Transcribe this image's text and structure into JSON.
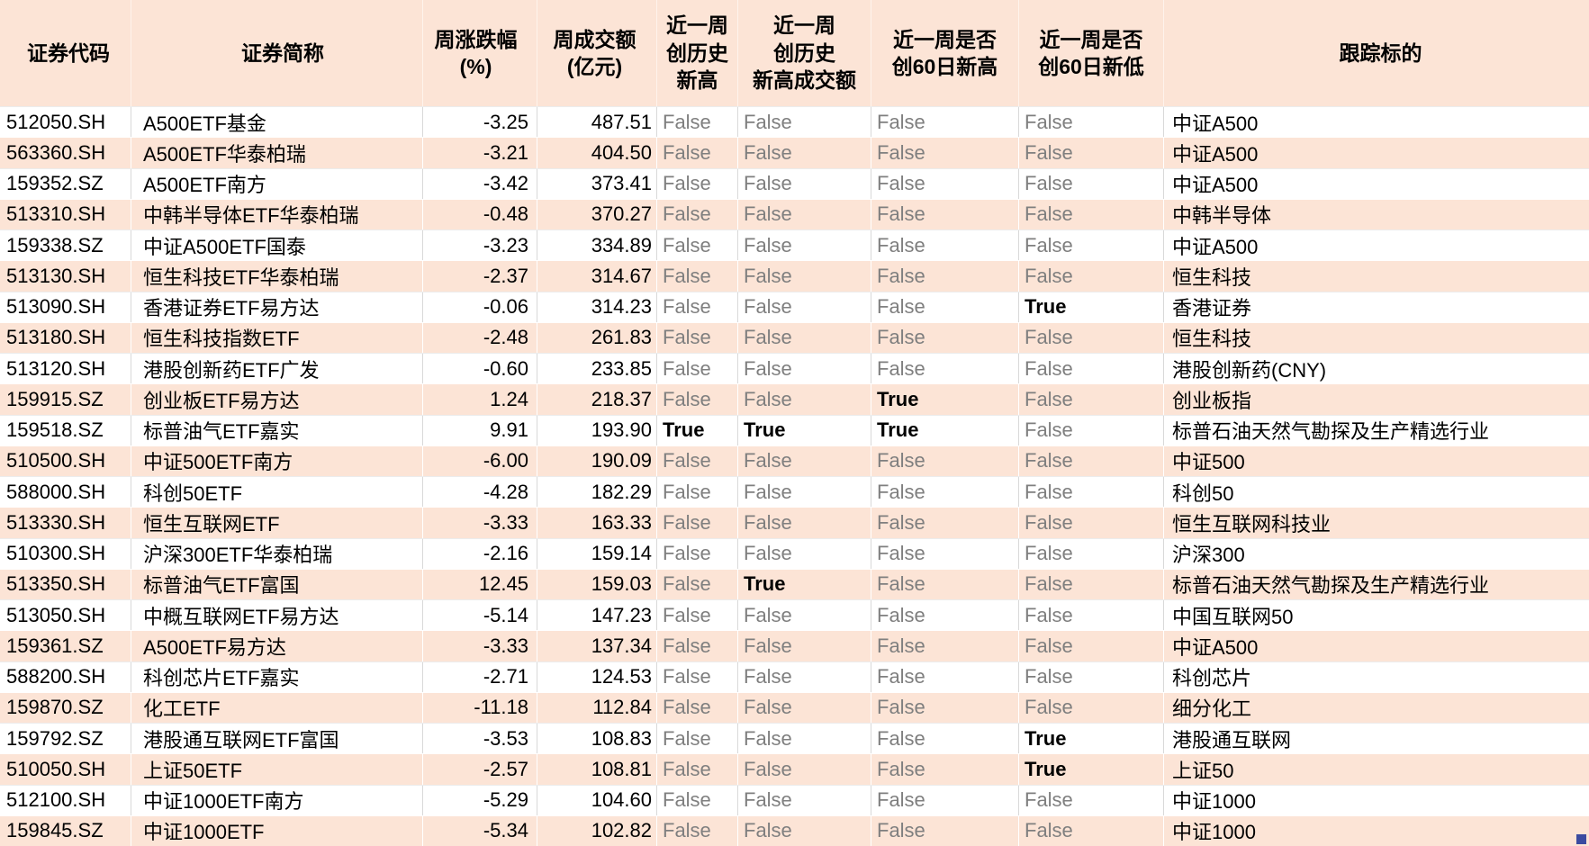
{
  "colors": {
    "band_fill": "#fce4d6",
    "false_text": "#7f7f7f",
    "true_text": "#000000",
    "gridline": "#d9d9d9",
    "selection_handle": "#3b4ba0"
  },
  "table": {
    "columns": [
      {
        "key": "code",
        "label": "证券代码"
      },
      {
        "key": "name",
        "label": "证券简称"
      },
      {
        "key": "weekly_change_pct",
        "label": "周涨跌幅\n(%)"
      },
      {
        "key": "weekly_turnover_100m",
        "label": "周成交额\n(亿元)"
      },
      {
        "key": "hist_high",
        "label": "近一周\n创历史\n新高"
      },
      {
        "key": "hist_high_turnover",
        "label": "近一周\n创历史\n新高成交额"
      },
      {
        "key": "high_60d",
        "label": "近一周是否\n创60日新高"
      },
      {
        "key": "low_60d",
        "label": "近一周是否\n创60日新低"
      },
      {
        "key": "tracking_target",
        "label": "跟踪标的"
      }
    ],
    "rows": [
      {
        "code": "512050.SH",
        "name": "A500ETF基金",
        "weekly_change_pct": "-3.25",
        "weekly_turnover_100m": "487.51",
        "hist_high": "False",
        "hist_high_turnover": "False",
        "high_60d": "False",
        "low_60d": "False",
        "tracking_target": "中证A500"
      },
      {
        "code": "563360.SH",
        "name": "A500ETF华泰柏瑞",
        "weekly_change_pct": "-3.21",
        "weekly_turnover_100m": "404.50",
        "hist_high": "False",
        "hist_high_turnover": "False",
        "high_60d": "False",
        "low_60d": "False",
        "tracking_target": "中证A500"
      },
      {
        "code": "159352.SZ",
        "name": "A500ETF南方",
        "weekly_change_pct": "-3.42",
        "weekly_turnover_100m": "373.41",
        "hist_high": "False",
        "hist_high_turnover": "False",
        "high_60d": "False",
        "low_60d": "False",
        "tracking_target": "中证A500"
      },
      {
        "code": "513310.SH",
        "name": "中韩半导体ETF华泰柏瑞",
        "weekly_change_pct": "-0.48",
        "weekly_turnover_100m": "370.27",
        "hist_high": "False",
        "hist_high_turnover": "False",
        "high_60d": "False",
        "low_60d": "False",
        "tracking_target": "中韩半导体"
      },
      {
        "code": "159338.SZ",
        "name": "中证A500ETF国泰",
        "weekly_change_pct": "-3.23",
        "weekly_turnover_100m": "334.89",
        "hist_high": "False",
        "hist_high_turnover": "False",
        "high_60d": "False",
        "low_60d": "False",
        "tracking_target": "中证A500"
      },
      {
        "code": "513130.SH",
        "name": "恒生科技ETF华泰柏瑞",
        "weekly_change_pct": "-2.37",
        "weekly_turnover_100m": "314.67",
        "hist_high": "False",
        "hist_high_turnover": "False",
        "high_60d": "False",
        "low_60d": "False",
        "tracking_target": "恒生科技"
      },
      {
        "code": "513090.SH",
        "name": "香港证券ETF易方达",
        "weekly_change_pct": "-0.06",
        "weekly_turnover_100m": "314.23",
        "hist_high": "False",
        "hist_high_turnover": "False",
        "high_60d": "False",
        "low_60d": "True",
        "tracking_target": "香港证券"
      },
      {
        "code": "513180.SH",
        "name": "恒生科技指数ETF",
        "weekly_change_pct": "-2.48",
        "weekly_turnover_100m": "261.83",
        "hist_high": "False",
        "hist_high_turnover": "False",
        "high_60d": "False",
        "low_60d": "False",
        "tracking_target": "恒生科技"
      },
      {
        "code": "513120.SH",
        "name": "港股创新药ETF广发",
        "weekly_change_pct": "-0.60",
        "weekly_turnover_100m": "233.85",
        "hist_high": "False",
        "hist_high_turnover": "False",
        "high_60d": "False",
        "low_60d": "False",
        "tracking_target": "港股创新药(CNY)"
      },
      {
        "code": "159915.SZ",
        "name": "创业板ETF易方达",
        "weekly_change_pct": "1.24",
        "weekly_turnover_100m": "218.37",
        "hist_high": "False",
        "hist_high_turnover": "False",
        "high_60d": "True",
        "low_60d": "False",
        "tracking_target": "创业板指"
      },
      {
        "code": "159518.SZ",
        "name": "标普油气ETF嘉实",
        "weekly_change_pct": "9.91",
        "weekly_turnover_100m": "193.90",
        "hist_high": "True",
        "hist_high_turnover": "True",
        "high_60d": "True",
        "low_60d": "False",
        "tracking_target": "标普石油天然气勘探及生产精选行业"
      },
      {
        "code": "510500.SH",
        "name": "中证500ETF南方",
        "weekly_change_pct": "-6.00",
        "weekly_turnover_100m": "190.09",
        "hist_high": "False",
        "hist_high_turnover": "False",
        "high_60d": "False",
        "low_60d": "False",
        "tracking_target": "中证500"
      },
      {
        "code": "588000.SH",
        "name": "科创50ETF",
        "weekly_change_pct": "-4.28",
        "weekly_turnover_100m": "182.29",
        "hist_high": "False",
        "hist_high_turnover": "False",
        "high_60d": "False",
        "low_60d": "False",
        "tracking_target": "科创50"
      },
      {
        "code": "513330.SH",
        "name": "恒生互联网ETF",
        "weekly_change_pct": "-3.33",
        "weekly_turnover_100m": "163.33",
        "hist_high": "False",
        "hist_high_turnover": "False",
        "high_60d": "False",
        "low_60d": "False",
        "tracking_target": "恒生互联网科技业"
      },
      {
        "code": "510300.SH",
        "name": "沪深300ETF华泰柏瑞",
        "weekly_change_pct": "-2.16",
        "weekly_turnover_100m": "159.14",
        "hist_high": "False",
        "hist_high_turnover": "False",
        "high_60d": "False",
        "low_60d": "False",
        "tracking_target": "沪深300"
      },
      {
        "code": "513350.SH",
        "name": "标普油气ETF富国",
        "weekly_change_pct": "12.45",
        "weekly_turnover_100m": "159.03",
        "hist_high": "False",
        "hist_high_turnover": "True",
        "high_60d": "False",
        "low_60d": "False",
        "tracking_target": "标普石油天然气勘探及生产精选行业"
      },
      {
        "code": "513050.SH",
        "name": "中概互联网ETF易方达",
        "weekly_change_pct": "-5.14",
        "weekly_turnover_100m": "147.23",
        "hist_high": "False",
        "hist_high_turnover": "False",
        "high_60d": "False",
        "low_60d": "False",
        "tracking_target": "中国互联网50"
      },
      {
        "code": "159361.SZ",
        "name": "A500ETF易方达",
        "weekly_change_pct": "-3.33",
        "weekly_turnover_100m": "137.34",
        "hist_high": "False",
        "hist_high_turnover": "False",
        "high_60d": "False",
        "low_60d": "False",
        "tracking_target": "中证A500"
      },
      {
        "code": "588200.SH",
        "name": "科创芯片ETF嘉实",
        "weekly_change_pct": "-2.71",
        "weekly_turnover_100m": "124.53",
        "hist_high": "False",
        "hist_high_turnover": "False",
        "high_60d": "False",
        "low_60d": "False",
        "tracking_target": "科创芯片"
      },
      {
        "code": "159870.SZ",
        "name": "化工ETF",
        "weekly_change_pct": "-11.18",
        "weekly_turnover_100m": "112.84",
        "hist_high": "False",
        "hist_high_turnover": "False",
        "high_60d": "False",
        "low_60d": "False",
        "tracking_target": "细分化工"
      },
      {
        "code": "159792.SZ",
        "name": "港股通互联网ETF富国",
        "weekly_change_pct": "-3.53",
        "weekly_turnover_100m": "108.83",
        "hist_high": "False",
        "hist_high_turnover": "False",
        "high_60d": "False",
        "low_60d": "True",
        "tracking_target": "港股通互联网"
      },
      {
        "code": "510050.SH",
        "name": "上证50ETF",
        "weekly_change_pct": "-2.57",
        "weekly_turnover_100m": "108.81",
        "hist_high": "False",
        "hist_high_turnover": "False",
        "high_60d": "False",
        "low_60d": "True",
        "tracking_target": "上证50"
      },
      {
        "code": "512100.SH",
        "name": "中证1000ETF南方",
        "weekly_change_pct": "-5.29",
        "weekly_turnover_100m": "104.60",
        "hist_high": "False",
        "hist_high_turnover": "False",
        "high_60d": "False",
        "low_60d": "False",
        "tracking_target": "中证1000"
      },
      {
        "code": "159845.SZ",
        "name": "中证1000ETF",
        "weekly_change_pct": "-5.34",
        "weekly_turnover_100m": "102.82",
        "hist_high": "False",
        "hist_high_turnover": "False",
        "high_60d": "False",
        "low_60d": "False",
        "tracking_target": "中证1000"
      }
    ]
  }
}
